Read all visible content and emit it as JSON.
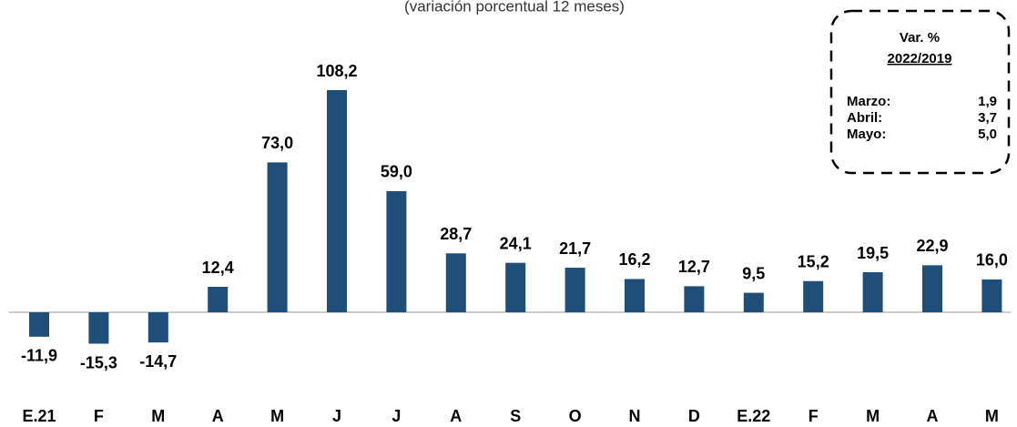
{
  "chart_data": {
    "type": "bar",
    "subtitle": "(variación porcentual 12 meses)",
    "categories": [
      "E.21",
      "F",
      "M",
      "A",
      "M",
      "J",
      "J",
      "A",
      "S",
      "O",
      "N",
      "D",
      "E.22",
      "F",
      "M",
      "A",
      "M"
    ],
    "values": [
      -11.9,
      -15.3,
      -14.7,
      12.4,
      73.0,
      108.2,
      59.0,
      28.7,
      24.1,
      21.7,
      16.2,
      12.7,
      9.5,
      15.2,
      19.5,
      22.9,
      16.0
    ],
    "value_labels": [
      "-11,9",
      "-15,3",
      "-14,7",
      "12,4",
      "73,0",
      "108,2",
      "59,0",
      "28,7",
      "24,1",
      "21,7",
      "16,2",
      "12,7",
      "9,5",
      "15,2",
      "19,5",
      "22,9",
      "16,0"
    ],
    "color": "#1f4e79"
  },
  "inset": {
    "title": "Var. %",
    "subtitle": "2022/2019",
    "rows": [
      [
        "Marzo:",
        "1,9"
      ],
      [
        "Abril:",
        "3,7"
      ],
      [
        "Mayo:",
        "5,0"
      ]
    ]
  }
}
